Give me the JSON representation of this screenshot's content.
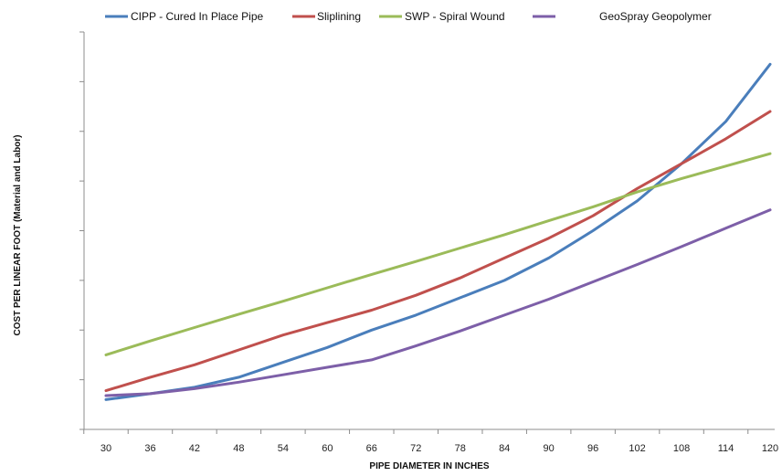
{
  "chart_data": {
    "type": "line",
    "title": "",
    "xlabel": "PIPE DIAMETER IN INCHES",
    "ylabel": "COST PER LINEAR FOOT (Material and Labor)",
    "x": [
      30,
      36,
      42,
      48,
      54,
      60,
      66,
      72,
      78,
      84,
      90,
      96,
      102,
      108,
      114,
      120
    ],
    "ylim": [
      0,
      8
    ],
    "y_ticks_labeled": false,
    "grid": false,
    "legend_position": "top",
    "series": [
      {
        "name": "CIPP - Cured In Place Pipe",
        "color": "#4a7ebb",
        "values": [
          0.6,
          0.72,
          0.85,
          1.05,
          1.35,
          1.65,
          2.0,
          2.3,
          2.65,
          3.0,
          3.45,
          4.0,
          4.6,
          5.35,
          6.2,
          7.35
        ]
      },
      {
        "name": "Sliplining",
        "color": "#c0504d",
        "values": [
          0.78,
          1.05,
          1.3,
          1.6,
          1.9,
          2.15,
          2.4,
          2.7,
          3.05,
          3.45,
          3.85,
          4.3,
          4.85,
          5.35,
          5.85,
          6.4
        ]
      },
      {
        "name": "SWP - Spiral Wound",
        "color": "#9bbb59",
        "values": [
          1.5,
          1.78,
          2.05,
          2.32,
          2.58,
          2.85,
          3.12,
          3.38,
          3.65,
          3.92,
          4.2,
          4.48,
          4.78,
          5.05,
          5.3,
          5.55
        ]
      },
      {
        "name": "GeoSpray Geopolymer",
        "color": "#7d5fa8",
        "values": [
          0.68,
          0.72,
          0.82,
          0.95,
          1.1,
          1.25,
          1.4,
          1.68,
          1.98,
          2.3,
          2.62,
          2.97,
          3.32,
          3.68,
          4.05,
          4.42
        ]
      }
    ]
  }
}
